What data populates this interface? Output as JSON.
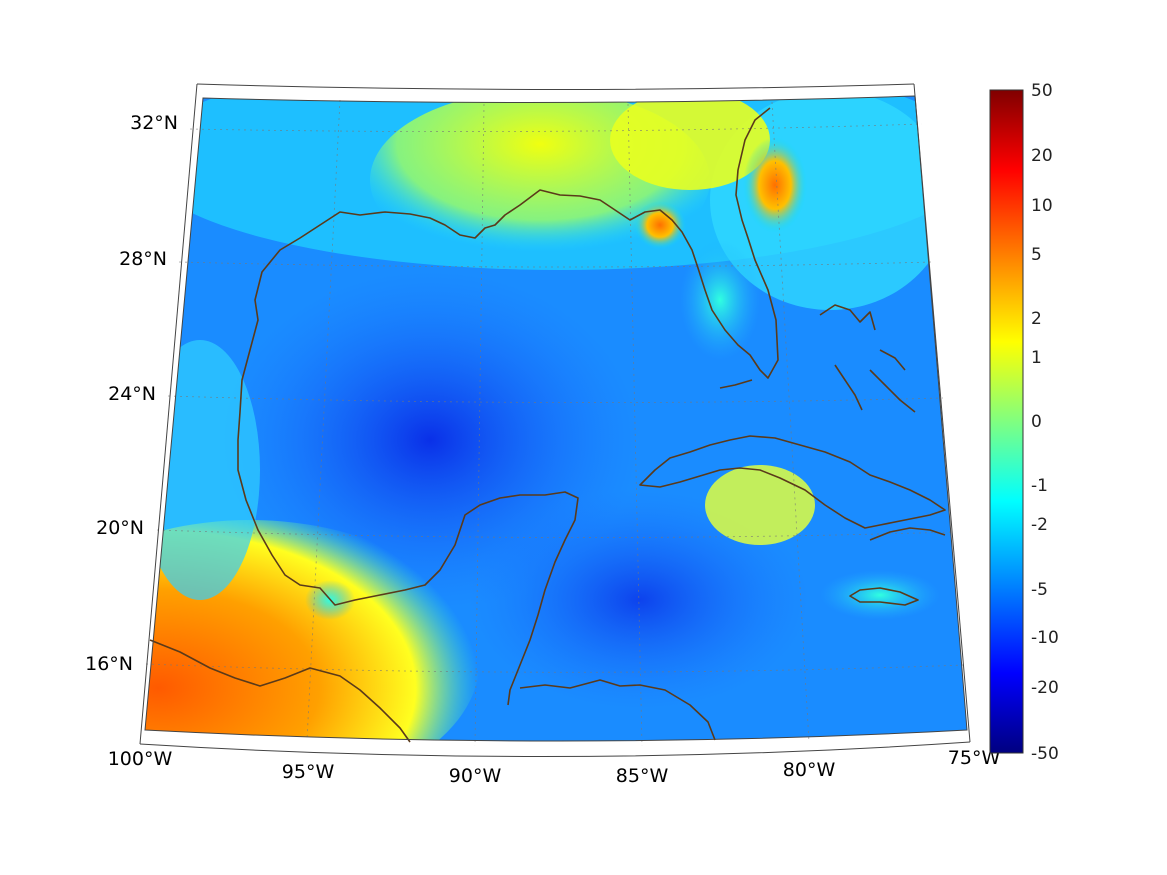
{
  "map": {
    "region": "Gulf of Mexico and Caribbean",
    "lon_range": [
      -100,
      -75
    ],
    "lat_range": [
      14,
      33
    ],
    "lat_ticks": [
      {
        "value": 32,
        "label": "32°N"
      },
      {
        "value": 28,
        "label": "28°N"
      },
      {
        "value": 24,
        "label": "24°N"
      },
      {
        "value": 20,
        "label": "20°N"
      },
      {
        "value": 16,
        "label": "16°N"
      }
    ],
    "lon_ticks": [
      {
        "value": -100,
        "label": "100°W"
      },
      {
        "value": -95,
        "label": "95°W"
      },
      {
        "value": -90,
        "label": "90°W"
      },
      {
        "value": -85,
        "label": "85°W"
      },
      {
        "value": -80,
        "label": "80°W"
      },
      {
        "value": -75,
        "label": "75°W"
      }
    ],
    "coastline_color": "#5a3a1a",
    "grid": "dotted"
  },
  "colorbar": {
    "ticks": [
      "50",
      "20",
      "10",
      "5",
      "2",
      "1",
      "0",
      "-1",
      "-2",
      "-5",
      "-10",
      "-20",
      "-50"
    ],
    "colormap": "jet",
    "colors": [
      "#800000",
      "#ff0000",
      "#ff8000",
      "#ffff00",
      "#80ff80",
      "#00ffff",
      "#0080ff",
      "#0000ff",
      "#000080"
    ]
  }
}
